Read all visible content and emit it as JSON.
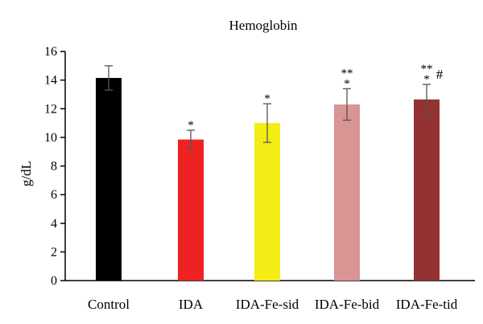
{
  "chart_data": {
    "type": "bar",
    "title": "Hemoglobin",
    "xlabel": "",
    "ylabel": "g/dL",
    "ylim": [
      0,
      16
    ],
    "yticks": [
      0,
      2,
      4,
      6,
      8,
      10,
      12,
      14,
      16
    ],
    "grid": false,
    "legend": "none",
    "categories": [
      "Control",
      "IDA",
      "IDA-Fe-sid",
      "IDA-Fe-bid",
      "IDA-Fe-tid"
    ],
    "values": [
      14.15,
      9.85,
      11.0,
      12.3,
      12.65
    ],
    "error": [
      0.85,
      0.65,
      1.35,
      1.1,
      1.05
    ],
    "colors": [
      "#000000",
      "#ee2222",
      "#f5ec16",
      "#d99493",
      "#933232"
    ],
    "significance": [
      [],
      [
        "*"
      ],
      [
        "*"
      ],
      [
        "**",
        "*"
      ],
      [
        "**",
        "*"
      ]
    ],
    "annotations": [
      "#"
    ]
  }
}
